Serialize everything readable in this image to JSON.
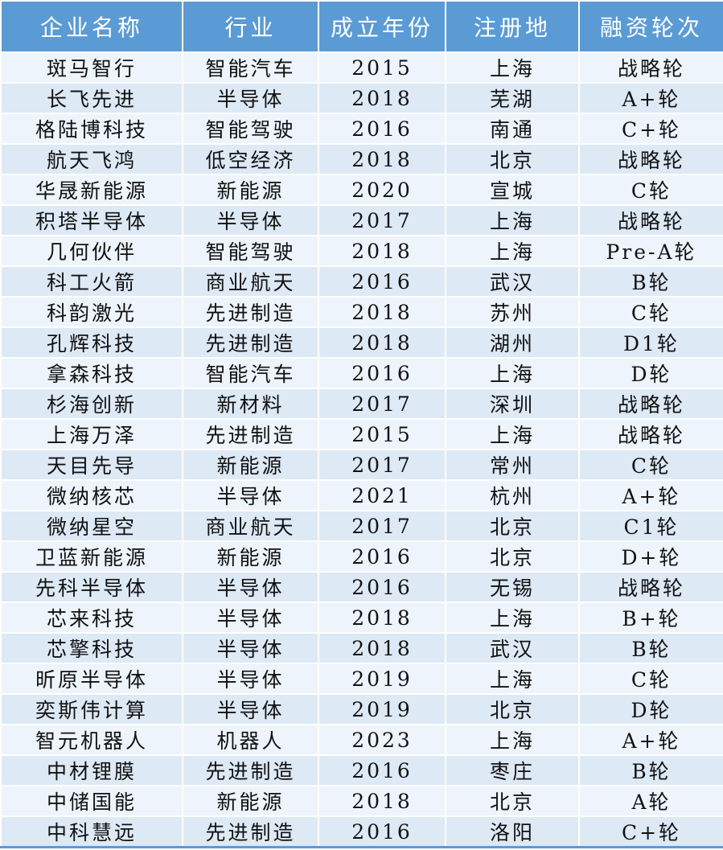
{
  "colors": {
    "header_bg": "#5b9bd5",
    "row_light": "#edf4fb",
    "row_dark": "#dde9f5"
  },
  "headers": [
    "企业名称",
    "行业",
    "成立年份",
    "注册地",
    "融资轮次"
  ],
  "rows": [
    [
      "斑马智行",
      "智能汽车",
      "2015",
      "上海",
      "战略轮"
    ],
    [
      "长飞先进",
      "半导体",
      "2018",
      "芜湖",
      "A+轮"
    ],
    [
      "格陆博科技",
      "智能驾驶",
      "2016",
      "南通",
      "C+轮"
    ],
    [
      "航天飞鸿",
      "低空经济",
      "2018",
      "北京",
      "战略轮"
    ],
    [
      "华晟新能源",
      "新能源",
      "2020",
      "宣城",
      "C轮"
    ],
    [
      "积塔半导体",
      "半导体",
      "2017",
      "上海",
      "战略轮"
    ],
    [
      "几何伙伴",
      "智能驾驶",
      "2018",
      "上海",
      "Pre-A轮"
    ],
    [
      "科工火箭",
      "商业航天",
      "2016",
      "武汉",
      "B轮"
    ],
    [
      "科韵激光",
      "先进制造",
      "2018",
      "苏州",
      "C轮"
    ],
    [
      "孔辉科技",
      "先进制造",
      "2018",
      "湖州",
      "D1轮"
    ],
    [
      "拿森科技",
      "智能汽车",
      "2016",
      "上海",
      "D轮"
    ],
    [
      "杉海创新",
      "新材料",
      "2017",
      "深圳",
      "战略轮"
    ],
    [
      "上海万泽",
      "先进制造",
      "2015",
      "上海",
      "战略轮"
    ],
    [
      "天目先导",
      "新能源",
      "2017",
      "常州",
      "C轮"
    ],
    [
      "微纳核芯",
      "半导体",
      "2021",
      "杭州",
      "A+轮"
    ],
    [
      "微纳星空",
      "商业航天",
      "2017",
      "北京",
      "C1轮"
    ],
    [
      "卫蓝新能源",
      "新能源",
      "2016",
      "北京",
      "D+轮"
    ],
    [
      "先科半导体",
      "半导体",
      "2016",
      "无锡",
      "战略轮"
    ],
    [
      "芯来科技",
      "半导体",
      "2018",
      "上海",
      "B+轮"
    ],
    [
      "芯擎科技",
      "半导体",
      "2018",
      "武汉",
      "B轮"
    ],
    [
      "昕原半导体",
      "半导体",
      "2019",
      "上海",
      "C轮"
    ],
    [
      "奕斯伟计算",
      "半导体",
      "2019",
      "北京",
      "D轮"
    ],
    [
      "智元机器人",
      "机器人",
      "2023",
      "上海",
      "A+轮"
    ],
    [
      "中材锂膜",
      "先进制造",
      "2016",
      "枣庄",
      "B轮"
    ],
    [
      "中储国能",
      "新能源",
      "2018",
      "北京",
      "A轮"
    ],
    [
      "中科慧远",
      "先进制造",
      "2016",
      "洛阳",
      "C+轮"
    ]
  ]
}
